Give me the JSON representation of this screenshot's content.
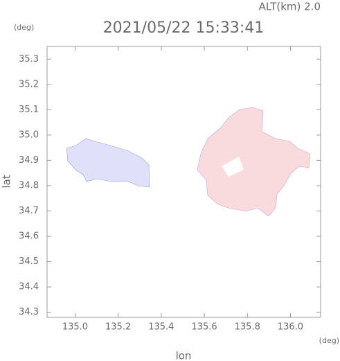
{
  "chart_data": {
    "type": "map",
    "title": "2021/05/22 15:33:41",
    "subtitle": "ALT(km)  2.0",
    "y_unit": "(deg)",
    "x_unit": "(deg)",
    "x_label": "lon",
    "y_label": "lat",
    "xlim": [
      134.87,
      136.14
    ],
    "ylim": [
      34.28,
      35.35
    ],
    "xticks": [
      {
        "value": 135.0,
        "label": "135.0"
      },
      135.2,
      135.4,
      135.6,
      135.8,
      {
        "value": 136.0,
        "label": "136.0"
      }
    ],
    "yticks": [
      34.3,
      34.4,
      34.5,
      34.6,
      34.7,
      34.8,
      34.9,
      {
        "value": 35.0,
        "label": "35.0"
      },
      35.1,
      35.2,
      35.3
    ]
  }
}
